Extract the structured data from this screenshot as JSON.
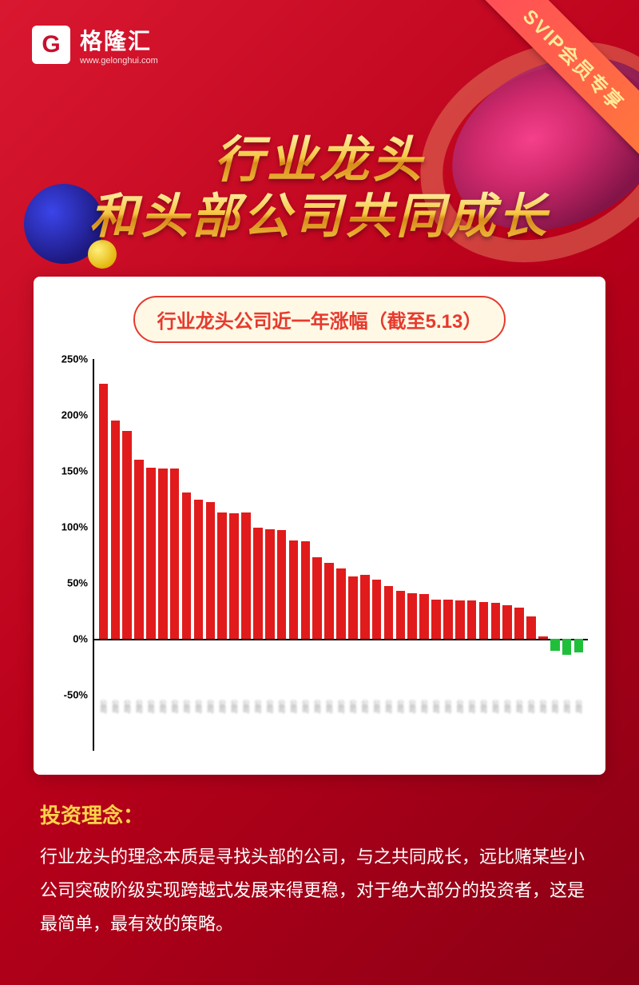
{
  "brand": {
    "logo_letter": "G",
    "name": "格隆汇",
    "url": "www.gelonghui.com"
  },
  "ribbon": {
    "text": "SVIP会员专享"
  },
  "hero": {
    "line1": "行业龙头",
    "line2": "和头部公司共同成长"
  },
  "chart": {
    "type": "bar",
    "title": "行业龙头公司近一年涨幅（截至5.13）",
    "background_color": "#ffffff",
    "axis_color": "#000000",
    "grid_color": "#d9d9d9",
    "title_pill_border": "#e63a2e",
    "title_pill_text": "#e63a2e",
    "title_pill_bg": "#fff8e5",
    "title_fontsize": 24,
    "label_fontsize": 13,
    "ylim": [
      -50,
      250
    ],
    "yticks": [
      -50,
      0,
      50,
      100,
      150,
      200,
      250
    ],
    "ytick_suffix": "%",
    "bar_gap_ratio": 0.22,
    "x_label_blur": true,
    "colors": {
      "positive": "#e11b1b",
      "negative": "#1fbf3a"
    },
    "values": [
      228,
      195,
      186,
      160,
      153,
      152,
      152,
      131,
      124,
      122,
      113,
      112,
      113,
      99,
      98,
      97,
      88,
      87,
      73,
      68,
      63,
      56,
      57,
      53,
      47,
      43,
      41,
      40,
      35,
      35,
      34,
      34,
      33,
      32,
      30,
      28,
      20,
      2,
      -11,
      -14,
      -12
    ],
    "categories": [
      "公司",
      "公司",
      "公司",
      "公司",
      "公司",
      "公司",
      "公司",
      "公司",
      "公司",
      "公司",
      "公司",
      "公司",
      "公司",
      "公司",
      "公司",
      "公司",
      "公司",
      "公司",
      "公司",
      "公司",
      "公司",
      "公司",
      "公司",
      "公司",
      "公司",
      "公司",
      "公司",
      "公司",
      "公司",
      "公司",
      "公司",
      "公司",
      "公司",
      "公司",
      "公司",
      "公司",
      "公司",
      "公司",
      "公司",
      "公司",
      "公司"
    ]
  },
  "footer": {
    "heading": "投资理念：",
    "body": "行业龙头的理念本质是寻找头部的公司，与之共同成长，远比赌某些小公司突破阶级实现跨越式发展来得更稳，对于绝大部分的投资者，这是最简单，最有效的策略。"
  }
}
